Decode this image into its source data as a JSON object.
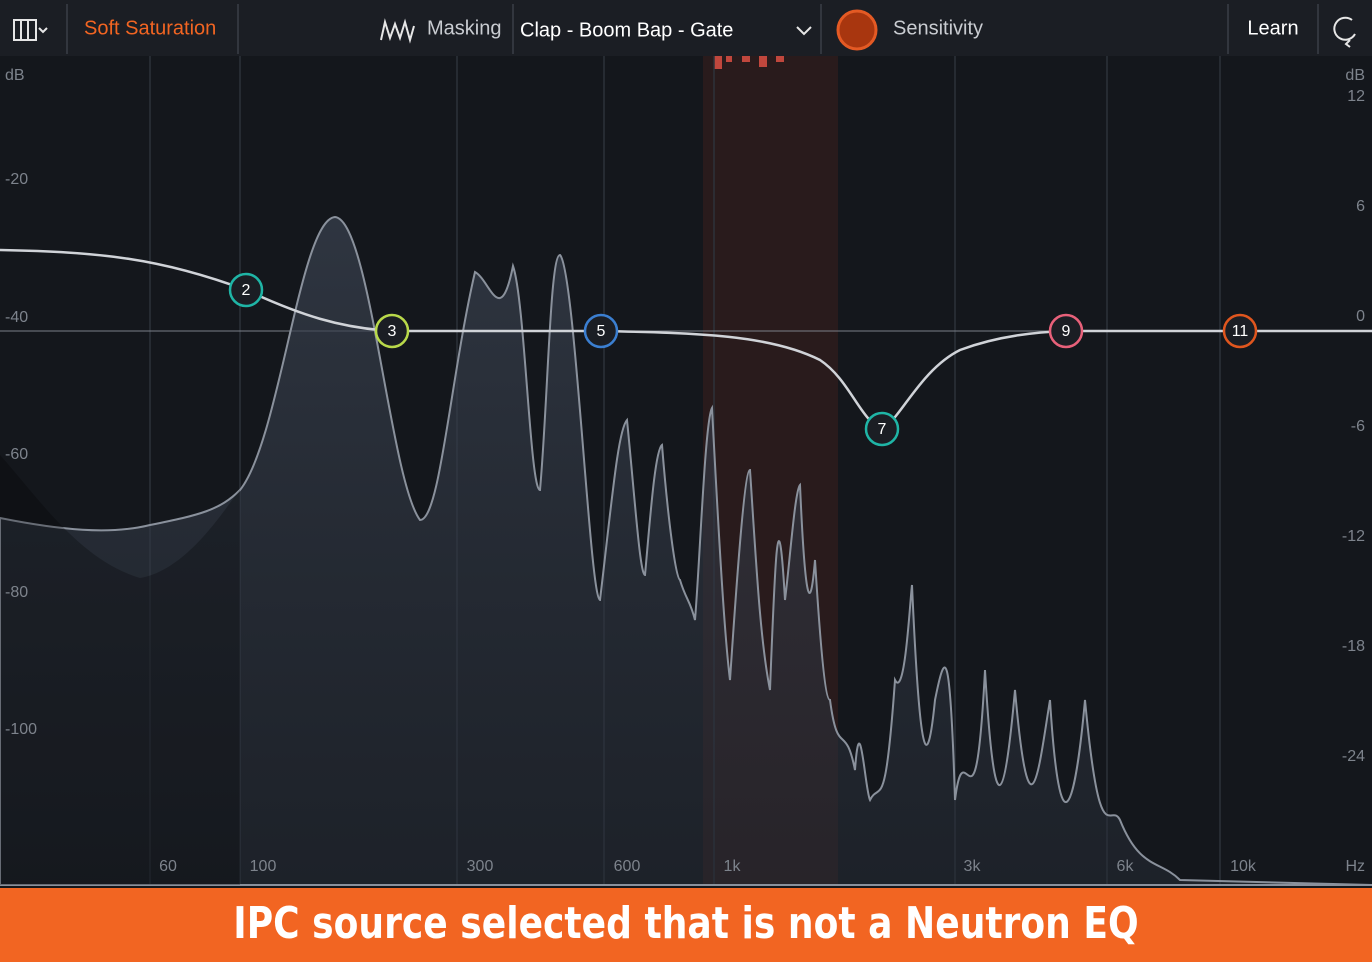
{
  "toolbar": {
    "preset": "Soft Saturation",
    "masking": "Masking",
    "source": "Clap - Boom Bap - Gate",
    "sensitivity": "Sensitivity",
    "learn": "Learn"
  },
  "axes": {
    "left_unit": "dB",
    "left_labels": [
      "-20",
      "-40",
      "-60",
      "-80",
      "-100"
    ],
    "right_unit": "dB",
    "right_labels": [
      "12",
      "6",
      "0",
      "-6",
      "-12",
      "-18",
      "-24"
    ],
    "freq_labels": [
      "60",
      "100",
      "300",
      "600",
      "1k",
      "3k",
      "6k",
      "10k"
    ],
    "freq_unit": "Hz"
  },
  "nodes": [
    {
      "label": "2"
    },
    {
      "label": "3"
    },
    {
      "label": "5"
    },
    {
      "label": "7"
    },
    {
      "label": "9"
    },
    {
      "label": "11"
    }
  ],
  "banner": "IPC source selected that is not a Neutron EQ"
}
